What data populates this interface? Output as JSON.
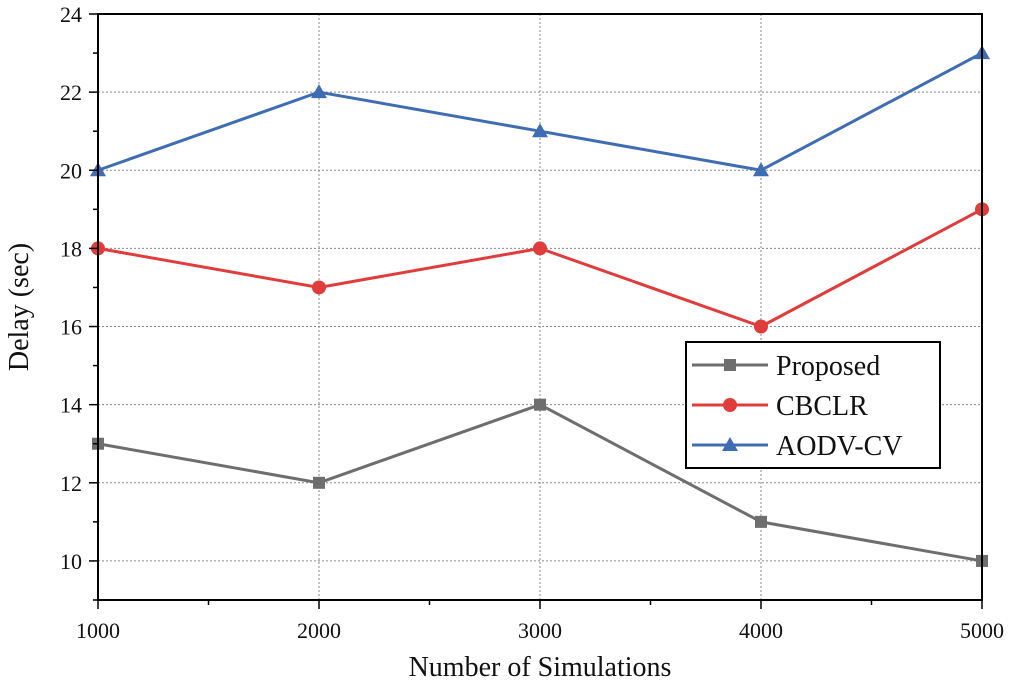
{
  "chart_data": {
    "type": "line",
    "title": "",
    "xlabel": "Number of Simulations",
    "ylabel": "Delay (sec)",
    "x": [
      1000,
      2000,
      3000,
      4000,
      5000
    ],
    "x_tick_labels": [
      "1000",
      "2000",
      "3000",
      "4000",
      "5000"
    ],
    "xlim": [
      1000,
      5000
    ],
    "ylim": [
      9,
      24
    ],
    "y_ticks": [
      10,
      12,
      14,
      16,
      18,
      20,
      22,
      24
    ],
    "y_tick_labels": [
      "10",
      "12",
      "14",
      "16",
      "18",
      "20",
      "22",
      "24"
    ],
    "grid": true,
    "legend_position": "center-right",
    "series": [
      {
        "name": "Proposed",
        "values": [
          13,
          12,
          14,
          11,
          10
        ],
        "color": "#6e6e6e",
        "marker": "square"
      },
      {
        "name": "CBCLR",
        "values": [
          18,
          17,
          18,
          16,
          19
        ],
        "color": "#e03c3c",
        "marker": "circle"
      },
      {
        "name": "AODV-CV",
        "values": [
          20,
          22,
          21,
          20,
          23
        ],
        "color": "#3f6db3",
        "marker": "triangle"
      }
    ]
  }
}
